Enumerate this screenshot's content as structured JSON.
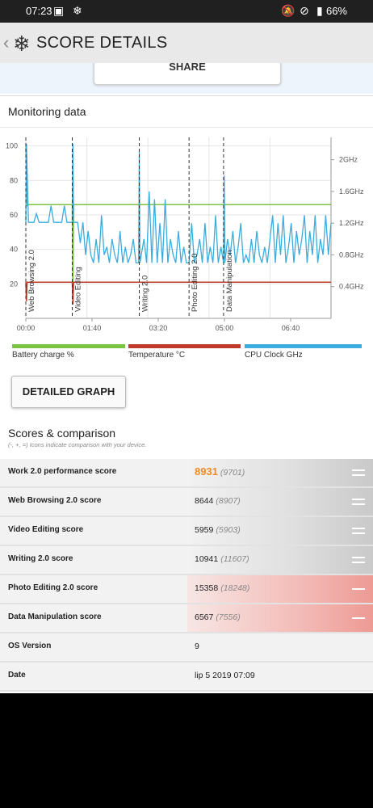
{
  "status": {
    "time": "07:23",
    "battery": "66%"
  },
  "appbar": {
    "title": "SCORE DETAILS"
  },
  "share_label": "SHARE",
  "monitoring_title": "Monitoring data",
  "chart_data": {
    "type": "line",
    "y_left_ticks": [
      "100",
      "80",
      "60",
      "40",
      "20"
    ],
    "y_right_ticks": [
      "2GHz",
      "1.6GHz",
      "1.2GHz",
      "0.8GHz",
      "0.4GHz"
    ],
    "x_ticks": [
      "00:00",
      "01:40",
      "03:20",
      "05:00",
      "06:40"
    ],
    "ylim_left": [
      0,
      105
    ],
    "grid": true,
    "markers": [
      {
        "label": "Web Browsing 2.0",
        "x": 0
      },
      {
        "label": "Video Editing",
        "x": 70
      },
      {
        "label": "Writing 2.0",
        "x": 171
      },
      {
        "label": "Photo Editing 2.0",
        "x": 246
      },
      {
        "label": "Data Manipulation",
        "x": 298
      }
    ],
    "series": [
      {
        "name": "Battery charge %",
        "color": "#7cc243",
        "x": [
          0,
          2,
          3,
          70,
          71,
          72,
          72.5,
          460
        ],
        "values": [
          100,
          65,
          66,
          66,
          12,
          66,
          66,
          66
        ]
      },
      {
        "name": "Temperature °C",
        "color": "#c0392b",
        "x": [
          0,
          1,
          2,
          70,
          71,
          72,
          460
        ],
        "values": [
          21,
          10,
          21,
          21,
          8,
          21,
          21
        ]
      },
      {
        "name": "CPU Clock GHz",
        "color": "#3aacde",
        "x": [
          0,
          1,
          4,
          8,
          12,
          16,
          20,
          26,
          30,
          34,
          38,
          42,
          46,
          50,
          54,
          58,
          62,
          66,
          70,
          71,
          72,
          74,
          78,
          82,
          86,
          90,
          94,
          98,
          102,
          106,
          110,
          114,
          118,
          122,
          126,
          130,
          134,
          138,
          142,
          146,
          150,
          154,
          158,
          162,
          166,
          170,
          171,
          172,
          174,
          178,
          182,
          186,
          190,
          194,
          198,
          202,
          206,
          210,
          214,
          218,
          222,
          226,
          230,
          234,
          238,
          242,
          246,
          250,
          254,
          258,
          262,
          266,
          270,
          274,
          278,
          282,
          286,
          290,
          294,
          298,
          299,
          300,
          304,
          308,
          312,
          316,
          320,
          324,
          328,
          332,
          336,
          340,
          344,
          348,
          352,
          356,
          360,
          364,
          368,
          372,
          376,
          380,
          384,
          388,
          392,
          396,
          400,
          404,
          408,
          412,
          416,
          420,
          424,
          428,
          432,
          436,
          440,
          444,
          448,
          452,
          456,
          460
        ],
        "values": [
          1.21,
          2.2,
          1.21,
          1.21,
          1.21,
          1.32,
          1.21,
          1.21,
          1.21,
          1.21,
          1.42,
          1.21,
          1.21,
          1.21,
          1.21,
          1.42,
          1.21,
          1.21,
          1.21,
          2.2,
          1.21,
          1.21,
          1.21,
          0.95,
          1.21,
          0.8,
          1.1,
          0.8,
          0.7,
          1.0,
          0.7,
          1.3,
          0.8,
          0.9,
          0.7,
          1.0,
          0.8,
          0.7,
          1.1,
          0.7,
          0.9,
          0.7,
          0.8,
          1.0,
          0.7,
          0.7,
          2.1,
          0.7,
          0.8,
          1.0,
          0.7,
          1.6,
          0.7,
          1.5,
          0.7,
          1.2,
          0.7,
          1.5,
          0.7,
          1.0,
          0.8,
          0.7,
          1.1,
          0.7,
          0.9,
          0.7,
          0.7,
          1.2,
          0.7,
          0.8,
          1.0,
          0.7,
          1.2,
          0.7,
          0.9,
          0.7,
          1.3,
          0.7,
          0.9,
          0.7,
          1.8,
          0.7,
          1.0,
          0.8,
          1.1,
          0.7,
          0.9,
          1.2,
          0.7,
          0.8,
          0.7,
          1.0,
          0.7,
          1.1,
          0.8,
          0.7,
          0.9,
          0.7,
          1.0,
          1.3,
          0.7,
          1.2,
          0.8,
          1.3,
          0.7,
          0.9,
          1.2,
          0.7,
          1.1,
          0.8,
          1.0,
          1.3,
          0.7,
          1.1,
          0.8,
          1.3,
          0.7,
          1.0,
          0.8,
          1.3,
          0.8,
          1.2
        ]
      }
    ]
  },
  "detailed_graph_label": "DETAILED GRAPH",
  "scores": {
    "title": "Scores & comparison",
    "subtitle": "(-, +, =) Icons indicate comparison with your device.",
    "rows": [
      {
        "name": "Work 2.0 performance score",
        "value": "8931",
        "ref": "(9701)"
      },
      {
        "name": "Web Browsing 2.0 score",
        "value": "8644",
        "ref": "(8907)"
      },
      {
        "name": "Video Editing score",
        "value": "5959",
        "ref": "(5903)"
      },
      {
        "name": "Writing 2.0 score",
        "value": "10941",
        "ref": "(11607)"
      },
      {
        "name": "Photo Editing 2.0 score",
        "value": "15358",
        "ref": "(18248)"
      },
      {
        "name": "Data Manipulation score",
        "value": "6567",
        "ref": "(7556)"
      },
      {
        "name": "OS Version",
        "value": "9",
        "ref": ""
      },
      {
        "name": "Date",
        "value": "lip 5 2019 07:09",
        "ref": ""
      }
    ]
  }
}
